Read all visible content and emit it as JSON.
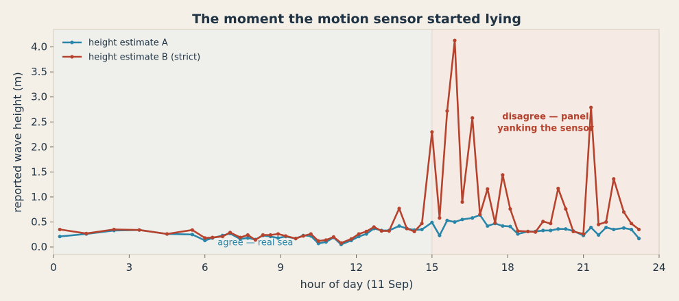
{
  "chart_data": {
    "type": "line",
    "title": "The moment the motion sensor started lying",
    "xlabel": "hour of day (11 Sep)",
    "ylabel": "reported wave height (m)",
    "xlim": [
      0,
      24
    ],
    "ylim": [
      -0.15,
      4.35
    ],
    "x_ticks": [
      0,
      3,
      6,
      9,
      12,
      15,
      18,
      21,
      24
    ],
    "y_ticks": [
      0.0,
      0.5,
      1.0,
      1.5,
      2.0,
      2.5,
      3.0,
      3.5,
      4.0
    ],
    "y_tick_labels": [
      "0.0",
      "0.5",
      "1.0",
      "1.5",
      "2.0",
      "2.5",
      "3.0",
      "3.5",
      "4.0"
    ],
    "grid": false,
    "legend_position": "top-left",
    "regions": [
      {
        "from": 0,
        "to": 15,
        "color": "#eff0ec",
        "label": "agree — real sea",
        "label_x": 8.0,
        "label_y": 0.12
      },
      {
        "from": 15,
        "to": 24,
        "color": "#f6ebe4",
        "label": "disagree — panel yanking the sensor",
        "label_lines": [
          "disagree — panel",
          "yanking the sensor"
        ],
        "label_x": 19.5,
        "label_y": 2.55
      }
    ],
    "series": [
      {
        "name": "height estimate A",
        "color": "#2a86a8",
        "x": [
          0.25,
          1.3,
          2.4,
          3.4,
          4.5,
          5.5,
          6.0,
          6.3,
          6.7,
          7.0,
          7.4,
          7.7,
          8.0,
          8.3,
          8.6,
          8.9,
          9.2,
          9.6,
          9.9,
          10.2,
          10.5,
          10.8,
          11.1,
          11.4,
          11.8,
          12.1,
          12.4,
          12.7,
          13.0,
          13.3,
          13.7,
          14.0,
          14.3,
          14.6,
          15.0,
          15.3,
          15.6,
          15.9,
          16.2,
          16.6,
          16.9,
          17.2,
          17.5,
          17.8,
          18.1,
          18.4,
          18.8,
          19.1,
          19.4,
          19.7,
          20.0,
          20.3,
          20.6,
          21.0,
          21.3,
          21.6,
          21.9,
          22.2,
          22.6,
          22.9,
          23.2
        ],
        "values": [
          0.21,
          0.26,
          0.33,
          0.34,
          0.26,
          0.25,
          0.13,
          0.18,
          0.23,
          0.27,
          0.16,
          0.18,
          0.15,
          0.23,
          0.21,
          0.18,
          0.21,
          0.17,
          0.23,
          0.22,
          0.07,
          0.1,
          0.19,
          0.05,
          0.13,
          0.21,
          0.26,
          0.37,
          0.33,
          0.33,
          0.42,
          0.37,
          0.34,
          0.35,
          0.49,
          0.23,
          0.53,
          0.5,
          0.55,
          0.58,
          0.64,
          0.42,
          0.47,
          0.42,
          0.41,
          0.26,
          0.31,
          0.31,
          0.33,
          0.33,
          0.36,
          0.36,
          0.32,
          0.23,
          0.39,
          0.24,
          0.39,
          0.35,
          0.38,
          0.35,
          0.17
        ]
      },
      {
        "name": "height estimate B (strict)",
        "color": "#b5432e",
        "x": [
          0.25,
          1.3,
          2.4,
          3.4,
          4.5,
          5.5,
          6.0,
          6.3,
          6.7,
          7.0,
          7.4,
          7.7,
          8.0,
          8.3,
          8.6,
          8.9,
          9.2,
          9.6,
          9.9,
          10.2,
          10.5,
          10.8,
          11.1,
          11.4,
          11.8,
          12.1,
          12.4,
          12.7,
          13.0,
          13.3,
          13.7,
          14.0,
          14.3,
          14.6,
          15.0,
          15.3,
          15.6,
          15.9,
          16.2,
          16.6,
          16.9,
          17.2,
          17.5,
          17.8,
          18.1,
          18.4,
          18.8,
          19.1,
          19.4,
          19.7,
          20.0,
          20.3,
          20.6,
          21.0,
          21.3,
          21.6,
          21.9,
          22.2,
          22.6,
          22.9,
          23.2
        ],
        "values": [
          0.35,
          0.27,
          0.35,
          0.34,
          0.26,
          0.34,
          0.18,
          0.19,
          0.21,
          0.29,
          0.19,
          0.24,
          0.14,
          0.24,
          0.24,
          0.26,
          0.22,
          0.17,
          0.22,
          0.26,
          0.12,
          0.14,
          0.2,
          0.08,
          0.16,
          0.26,
          0.31,
          0.4,
          0.32,
          0.32,
          0.77,
          0.37,
          0.31,
          0.47,
          2.3,
          0.58,
          2.72,
          4.13,
          0.9,
          2.58,
          0.65,
          1.16,
          0.48,
          1.44,
          0.76,
          0.32,
          0.31,
          0.3,
          0.51,
          0.47,
          1.17,
          0.76,
          0.31,
          0.26,
          2.79,
          0.45,
          0.5,
          1.36,
          0.7,
          0.47,
          0.35
        ]
      }
    ]
  }
}
